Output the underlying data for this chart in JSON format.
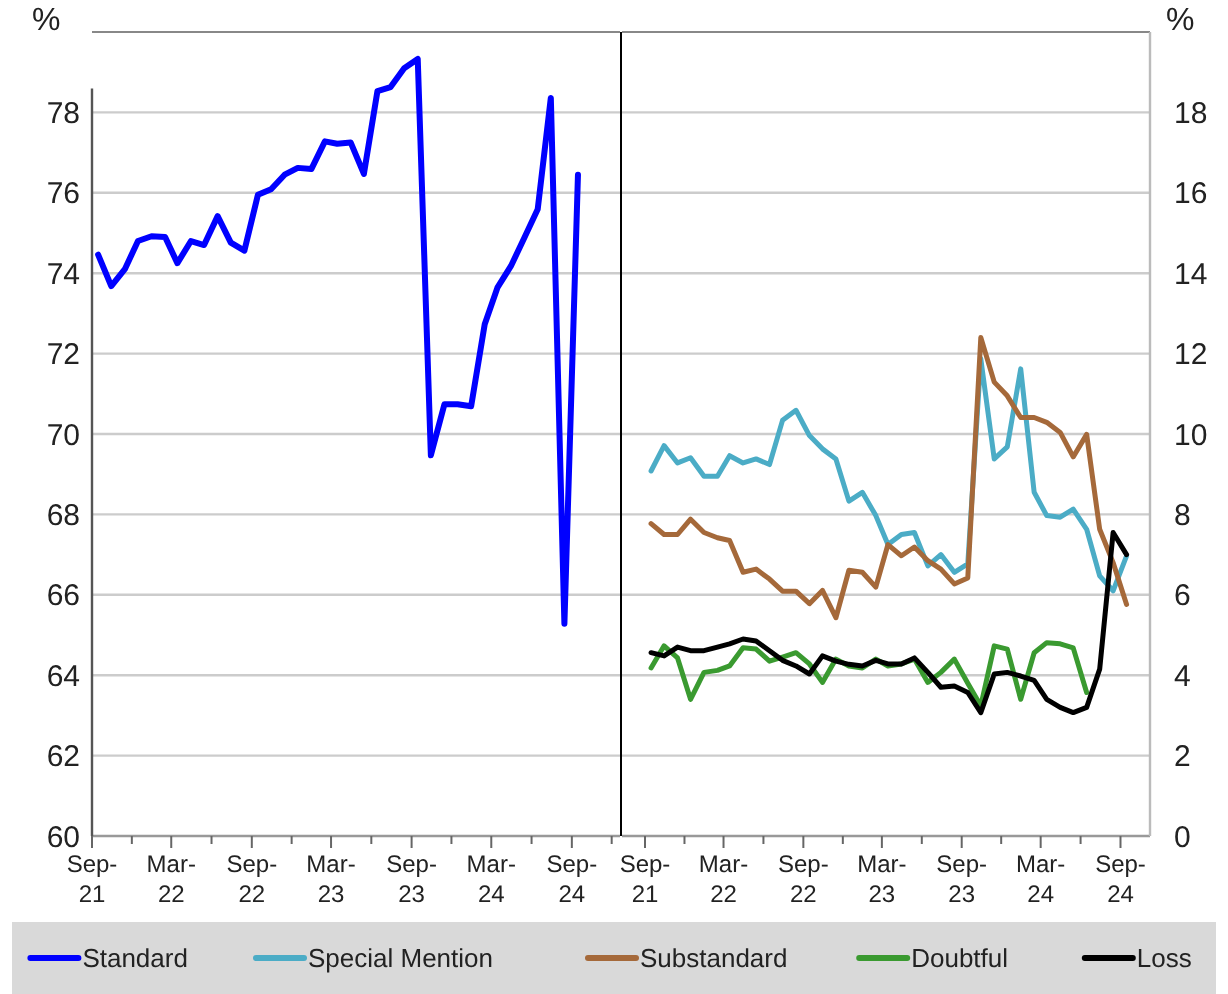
{
  "chart_data": [
    {
      "type": "line",
      "ylabel": "%",
      "grid": "y",
      "legend": "bottom",
      "xlim": [
        "2021-09-01",
        "2024-12-20"
      ],
      "ylim": [
        60,
        80
      ],
      "yticks": [
        60,
        62,
        64,
        66,
        68,
        70,
        72,
        74,
        76,
        78
      ],
      "xticks": [
        {
          "value": "2021-09-01",
          "label": "Sep-21"
        },
        {
          "value": "2021-12-01",
          "label": null
        },
        {
          "value": "2022-03-01",
          "label": "Mar-22"
        },
        {
          "value": "2022-06-01",
          "label": null
        },
        {
          "value": "2022-09-01",
          "label": "Sep-22"
        },
        {
          "value": "2022-12-01",
          "label": null
        },
        {
          "value": "2023-03-01",
          "label": "Mar-23"
        },
        {
          "value": "2023-06-01",
          "label": null
        },
        {
          "value": "2023-09-01",
          "label": "Sep-23"
        },
        {
          "value": "2023-12-01",
          "label": null
        },
        {
          "value": "2024-03-01",
          "label": "Mar-24"
        },
        {
          "value": "2024-06-01",
          "label": null
        },
        {
          "value": "2024-09-01",
          "label": "Sep-24"
        },
        {
          "value": "2024-12-01",
          "label": null
        }
      ],
      "x": [
        "2021-09-15",
        "2021-10-15",
        "2021-11-15",
        "2021-12-15",
        "2022-01-15",
        "2022-02-15",
        "2022-03-15",
        "2022-04-15",
        "2022-05-15",
        "2022-06-15",
        "2022-07-15",
        "2022-08-15",
        "2022-09-15",
        "2022-10-15",
        "2022-11-15",
        "2022-12-15",
        "2023-01-15",
        "2023-02-15",
        "2023-03-15",
        "2023-04-15",
        "2023-05-15",
        "2023-06-15",
        "2023-07-15",
        "2023-08-15",
        "2023-09-15",
        "2023-10-15",
        "2023-11-15",
        "2023-12-15",
        "2024-01-15",
        "2024-02-15",
        "2024-03-15",
        "2024-04-15",
        "2024-05-15",
        "2024-06-15",
        "2024-07-15",
        "2024-08-15",
        "2024-09-15"
      ],
      "series": [
        {
          "name": "Standard",
          "color": "#0000ff",
          "values": [
            74.46,
            73.68,
            74.1,
            74.8,
            74.92,
            74.9,
            74.25,
            74.8,
            74.7,
            75.42,
            74.76,
            74.56,
            75.95,
            76.09,
            76.45,
            76.62,
            76.59,
            77.28,
            77.22,
            77.25,
            76.47,
            78.53,
            78.63,
            79.1,
            79.33,
            69.47,
            70.74,
            70.74,
            70.69,
            72.73,
            73.64,
            74.18,
            74.87,
            75.59,
            78.36,
            65.28,
            76.45
          ]
        }
      ]
    },
    {
      "type": "line",
      "y2label": "%",
      "grid": "y",
      "legend": "bottom",
      "xlim": [
        "2021-07-10",
        "2024-11-08"
      ],
      "y2lim": [
        0,
        20
      ],
      "y2ticks": [
        0,
        2,
        4,
        6,
        8,
        10,
        12,
        14,
        16,
        18
      ],
      "xticks": [
        {
          "value": "2021-09-01",
          "label": "Sep-21"
        },
        {
          "value": "2021-12-01",
          "label": null
        },
        {
          "value": "2022-03-01",
          "label": "Mar-22"
        },
        {
          "value": "2022-06-01",
          "label": null
        },
        {
          "value": "2022-09-01",
          "label": "Sep-22"
        },
        {
          "value": "2022-12-01",
          "label": null
        },
        {
          "value": "2023-03-01",
          "label": "Mar-23"
        },
        {
          "value": "2023-06-01",
          "label": null
        },
        {
          "value": "2023-09-01",
          "label": "Sep-23"
        },
        {
          "value": "2023-12-01",
          "label": null
        },
        {
          "value": "2024-03-01",
          "label": "Mar-24"
        },
        {
          "value": "2024-06-01",
          "label": null
        },
        {
          "value": "2024-09-01",
          "label": "Sep-24"
        }
      ],
      "x": [
        "2021-09-15",
        "2021-10-15",
        "2021-11-15",
        "2021-12-15",
        "2022-01-15",
        "2022-02-15",
        "2022-03-15",
        "2022-04-15",
        "2022-05-15",
        "2022-06-15",
        "2022-07-15",
        "2022-08-15",
        "2022-09-15",
        "2022-10-15",
        "2022-11-15",
        "2022-12-15",
        "2023-01-15",
        "2023-02-15",
        "2023-03-15",
        "2023-04-15",
        "2023-05-15",
        "2023-06-15",
        "2023-07-15",
        "2023-08-15",
        "2023-09-15",
        "2023-10-15",
        "2023-11-15",
        "2023-12-15",
        "2024-01-15",
        "2024-02-15",
        "2024-03-15",
        "2024-04-15",
        "2024-05-15",
        "2024-06-15",
        "2024-07-15",
        "2024-08-15",
        "2024-09-15"
      ],
      "series": [
        {
          "name": "Special Mention",
          "color": "#4bacc6",
          "axis": "y2",
          "values": [
            9.08,
            9.71,
            9.28,
            9.41,
            8.95,
            8.95,
            9.46,
            9.28,
            9.38,
            9.24,
            10.34,
            10.59,
            9.96,
            9.63,
            9.38,
            8.33,
            8.55,
            7.97,
            7.25,
            7.5,
            7.55,
            6.72,
            7.0,
            6.56,
            6.77,
            11.87,
            9.38,
            9.68,
            11.62,
            8.55,
            7.97,
            7.93,
            8.13,
            7.63,
            6.47,
            6.1,
            6.97
          ]
        },
        {
          "name": "Substandard",
          "color": "#a5693a",
          "axis": "y2",
          "values": [
            7.77,
            7.5,
            7.5,
            7.88,
            7.55,
            7.42,
            7.35,
            6.56,
            6.64,
            6.39,
            6.09,
            6.09,
            5.78,
            6.11,
            5.43,
            6.61,
            6.56,
            6.19,
            7.25,
            6.97,
            7.19,
            6.85,
            6.64,
            6.27,
            6.42,
            12.4,
            11.29,
            10.95,
            10.41,
            10.41,
            10.29,
            10.04,
            9.43,
            9.99,
            7.63,
            6.8,
            5.76
          ]
        },
        {
          "name": "Doubtful",
          "color": "#3a9a30",
          "axis": "y2",
          "values": [
            4.18,
            4.73,
            4.43,
            3.4,
            4.07,
            4.12,
            4.23,
            4.68,
            4.65,
            4.35,
            4.45,
            4.56,
            4.28,
            3.82,
            4.4,
            4.23,
            4.18,
            4.4,
            4.23,
            4.28,
            4.4,
            3.82,
            4.07,
            4.4,
            3.8,
            3.24,
            4.73,
            4.65,
            3.4,
            4.56,
            4.81,
            4.78,
            4.68,
            3.57,
            null,
            null,
            null
          ]
        },
        {
          "name": "Loss",
          "color": "#000000",
          "axis": "y2",
          "values": [
            4.56,
            4.48,
            4.7,
            4.61,
            4.61,
            4.7,
            4.78,
            4.9,
            4.85,
            4.61,
            4.37,
            4.23,
            4.03,
            4.48,
            4.35,
            4.27,
            4.23,
            4.37,
            4.28,
            4.28,
            4.43,
            4.07,
            3.7,
            3.73,
            3.57,
            3.07,
            4.03,
            4.07,
            3.98,
            3.87,
            3.4,
            3.2,
            3.07,
            3.2,
            4.15,
            7.55,
            7.0
          ]
        }
      ]
    }
  ]
}
